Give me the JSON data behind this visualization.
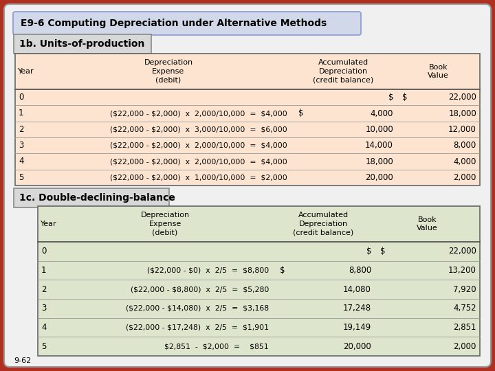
{
  "title": "E9-6 Computing Depreciation under Alternative Methods",
  "section1_title": "1b. Units-of-production",
  "section2_title": "1c. Double-declining-balance",
  "footer": "9-62",
  "outer_bg": "#c0392b",
  "inner_bg": "#f0f0f0",
  "table1_bg": "#fce4d0",
  "table2_bg": "#dde5cc",
  "title_bg": "#d0d8ea",
  "section_bg": "#d8d8d8",
  "table1_rows": [
    [
      "0",
      "",
      "",
      "$",
      "22,000"
    ],
    [
      "1",
      "($22,000 - $2,000)  x  2,000/10,000  =  $4,000",
      "$",
      "4,000",
      "18,000"
    ],
    [
      "2",
      "($22,000 - $2,000)  x  3,000/10,000  =  $6,000",
      "",
      "10,000",
      "12,000"
    ],
    [
      "3",
      "($22,000 - $2,000)  x  2,000/10,000  =  $4,000",
      "",
      "14,000",
      "8,000"
    ],
    [
      "4",
      "($22,000 - $2,000)  x  2,000/10,000  =  $4,000",
      "",
      "18,000",
      "4,000"
    ],
    [
      "5",
      "($22,000 - $2,000)  x  1,000/10,000  =  $2,000",
      "",
      "20,000",
      "2,000"
    ]
  ],
  "table2_rows": [
    [
      "0",
      "",
      "",
      "$",
      "22,000"
    ],
    [
      "1",
      "($22,000 - $0)  x  2/5  =  $8,800",
      "$",
      "8,800",
      "13,200"
    ],
    [
      "2",
      "($22,000 - $8,800)  x  2/5  =  $5,280",
      "",
      "14,080",
      "7,920"
    ],
    [
      "3",
      "($22,000 - $14,080)  x  2/5  =  $3,168",
      "",
      "17,248",
      "4,752"
    ],
    [
      "4",
      "($22,000 - $17,248)  x  2/5  =  $1,901",
      "",
      "19,149",
      "2,851"
    ],
    [
      "5",
      "$2,851  -  $2,000  =    $851",
      "",
      "20,000",
      "2,000"
    ]
  ]
}
